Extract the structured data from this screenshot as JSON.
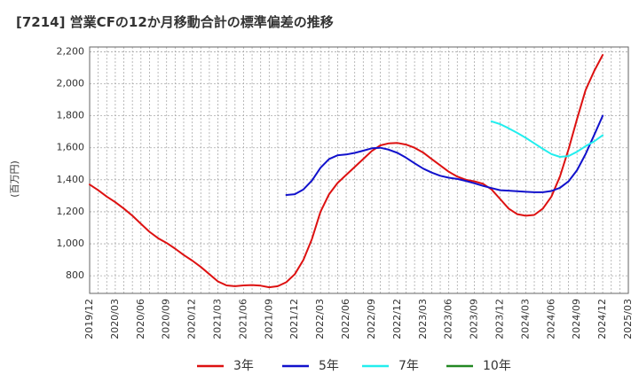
{
  "chart_data": {
    "type": "line",
    "title": "[7214]  営業CFの12か月移動合計の標準偏差の推移",
    "ylabel": "(百万円)",
    "xlabel": "",
    "ylim": [
      690,
      2230
    ],
    "yticks": [
      800,
      1000,
      1200,
      1400,
      1600,
      1800,
      2000,
      2200
    ],
    "ytick_labels": [
      "800",
      "1,000",
      "1,200",
      "1,400",
      "1,600",
      "1,800",
      "2,000",
      "2,200"
    ],
    "xticks": [
      "2019/12",
      "2020/03",
      "2020/06",
      "2020/09",
      "2020/12",
      "2021/03",
      "2021/06",
      "2021/09",
      "2021/12",
      "2022/03",
      "2022/06",
      "2022/09",
      "2022/12",
      "2023/03",
      "2023/06",
      "2023/09",
      "2023/12",
      "2024/03",
      "2024/06",
      "2024/09",
      "2024/12",
      "2025/03"
    ],
    "grid": true,
    "legend_position": "bottom",
    "series": [
      {
        "name": "3年",
        "color": "#dd1111",
        "x": [
          "2019/12",
          "2020/01",
          "2020/02",
          "2020/03",
          "2020/04",
          "2020/05",
          "2020/06",
          "2020/07",
          "2020/08",
          "2020/09",
          "2020/10",
          "2020/11",
          "2020/12",
          "2021/01",
          "2021/02",
          "2021/03",
          "2021/04",
          "2021/05",
          "2021/06",
          "2021/07",
          "2021/08",
          "2021/09",
          "2021/10",
          "2021/11",
          "2021/12",
          "2022/01",
          "2022/02",
          "2022/03",
          "2022/04",
          "2022/05",
          "2022/06",
          "2022/07",
          "2022/08",
          "2022/09",
          "2022/10",
          "2022/11",
          "2022/12",
          "2023/01",
          "2023/02",
          "2023/03",
          "2023/04",
          "2023/05",
          "2023/06",
          "2023/07",
          "2023/08",
          "2023/09",
          "2023/10",
          "2023/11",
          "2023/12",
          "2024/01",
          "2024/02",
          "2024/03",
          "2024/04",
          "2024/05",
          "2024/06",
          "2024/07",
          "2024/08",
          "2024/09",
          "2024/10",
          "2024/11",
          "2024/12"
        ],
        "values": [
          1370,
          1335,
          1295,
          1260,
          1220,
          1175,
          1125,
          1075,
          1035,
          1005,
          970,
          930,
          895,
          855,
          810,
          765,
          740,
          735,
          740,
          742,
          738,
          728,
          735,
          760,
          810,
          900,
          1030,
          1200,
          1310,
          1380,
          1430,
          1480,
          1530,
          1580,
          1615,
          1628,
          1630,
          1620,
          1600,
          1570,
          1530,
          1490,
          1450,
          1420,
          1400,
          1390,
          1375,
          1340,
          1280,
          1220,
          1185,
          1175,
          1180,
          1220,
          1295,
          1420,
          1590,
          1780,
          1960,
          2080,
          2180
        ]
      },
      {
        "name": "5年",
        "color": "#1111cc",
        "x": [
          "2021/11",
          "2021/12",
          "2022/01",
          "2022/02",
          "2022/03",
          "2022/04",
          "2022/05",
          "2022/06",
          "2022/07",
          "2022/08",
          "2022/09",
          "2022/10",
          "2022/11",
          "2022/12",
          "2023/01",
          "2023/02",
          "2023/03",
          "2023/04",
          "2023/05",
          "2023/06",
          "2023/07",
          "2023/08",
          "2023/09",
          "2023/10",
          "2023/11",
          "2023/12",
          "2024/01",
          "2024/02",
          "2024/03",
          "2024/04",
          "2024/05",
          "2024/06",
          "2024/07",
          "2024/08",
          "2024/09",
          "2024/10",
          "2024/11",
          "2024/12"
        ],
        "values": [
          1305,
          1310,
          1340,
          1395,
          1475,
          1530,
          1553,
          1558,
          1568,
          1582,
          1597,
          1600,
          1588,
          1568,
          1538,
          1503,
          1470,
          1445,
          1425,
          1413,
          1405,
          1393,
          1378,
          1362,
          1348,
          1335,
          1332,
          1328,
          1325,
          1322,
          1322,
          1330,
          1350,
          1390,
          1460,
          1560,
          1680,
          1800
        ]
      },
      {
        "name": "7年",
        "color": "#22eeee",
        "x": [
          "2023/11",
          "2023/12",
          "2024/01",
          "2024/02",
          "2024/03",
          "2024/04",
          "2024/05",
          "2024/06",
          "2024/07",
          "2024/08",
          "2024/09",
          "2024/10",
          "2024/11",
          "2024/12"
        ],
        "values": [
          1765,
          1748,
          1722,
          1693,
          1662,
          1628,
          1593,
          1561,
          1543,
          1548,
          1575,
          1610,
          1640,
          1678
        ]
      },
      {
        "name": "10年",
        "color": "#228822",
        "x": [],
        "values": []
      }
    ]
  }
}
